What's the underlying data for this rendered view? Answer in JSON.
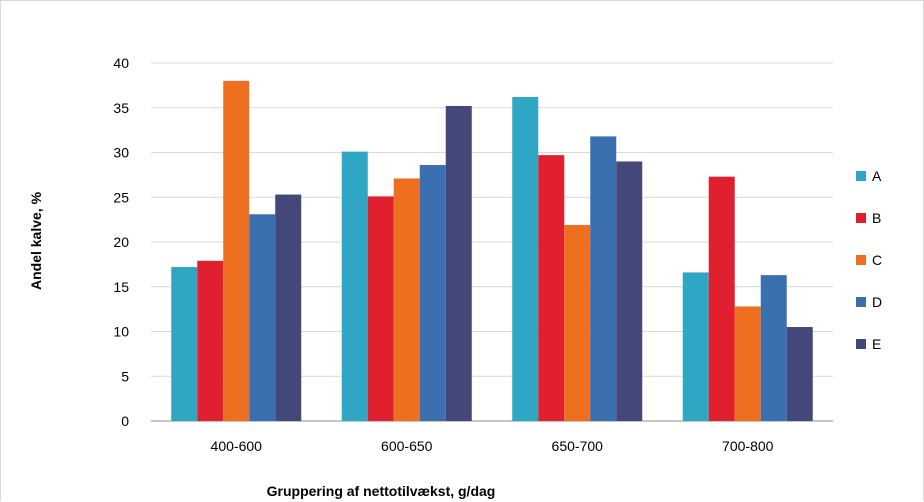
{
  "chart_data": {
    "type": "bar",
    "title": "",
    "xlabel": "Gruppering af nettotilvækst, g/dag",
    "ylabel": "Andel kalve, %",
    "ylim": [
      0,
      40
    ],
    "yticks": [
      "0",
      "5",
      "10",
      "15",
      "20",
      "25",
      "30",
      "35",
      "40"
    ],
    "categories": [
      "400-600",
      "600-650",
      "650-700",
      "700-800"
    ],
    "grid": true,
    "legend_position": "right",
    "series": [
      {
        "name": "A",
        "color": "#2fa7c4",
        "values": [
          17.2,
          30.1,
          36.2,
          16.6
        ]
      },
      {
        "name": "B",
        "color": "#e0202e",
        "values": [
          17.9,
          25.1,
          29.7,
          27.3
        ]
      },
      {
        "name": "C",
        "color": "#ee6f20",
        "values": [
          38.0,
          27.1,
          21.9,
          12.8
        ]
      },
      {
        "name": "D",
        "color": "#3a6fb0",
        "values": [
          23.1,
          28.6,
          31.8,
          16.3
        ]
      },
      {
        "name": "E",
        "color": "#44477a",
        "values": [
          25.3,
          35.2,
          29.0,
          10.5
        ]
      }
    ]
  }
}
